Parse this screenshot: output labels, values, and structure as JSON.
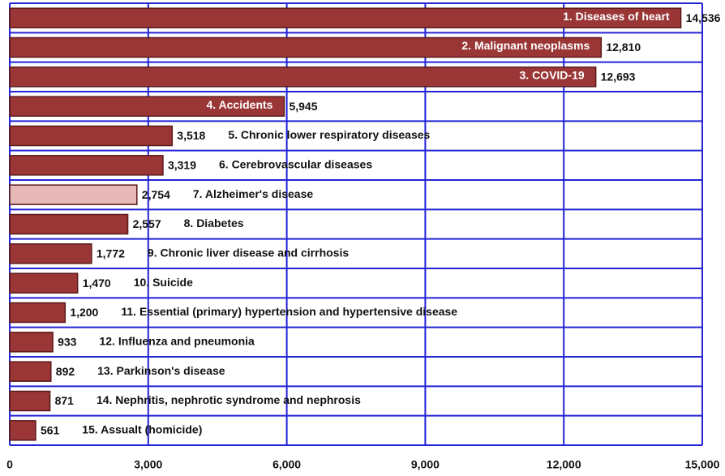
{
  "chart_data": {
    "type": "bar",
    "orientation": "horizontal",
    "categories": [
      "1.  Diseases of heart",
      "2.  Malignant neoplasms",
      "3.  COVID-19",
      "4.  Accidents",
      "5. Chronic lower respiratory diseases",
      "6. Cerebrovascular diseases",
      "7. Alzheimer's disease",
      "8. Diabetes",
      "9. Chronic liver disease and cirrhosis",
      "10.  Suicide",
      "11. Essential (primary) hypertension and hypertensive disease",
      "12. Influenza and pneumonia",
      "13. Parkinson's disease",
      "14. Nephritis, nephrotic syndrome and nephrosis",
      "15. Assualt (homicide)"
    ],
    "values": [
      14536,
      12810,
      12693,
      5945,
      3518,
      3319,
      2754,
      2557,
      1772,
      1470,
      1200,
      933,
      892,
      871,
      561
    ],
    "value_labels": [
      "14,536",
      "12,810",
      "12,693",
      "5,945",
      "3,518",
      "3,319",
      "2,754",
      "2,557",
      "1,772",
      "1,470",
      "1,200",
      "933",
      "892",
      "871",
      "561"
    ],
    "colors": [
      "#9a3636",
      "#9a3636",
      "#9a3636",
      "#9a3636",
      "#9a3636",
      "#9a3636",
      "#e6b9b8",
      "#9a3636",
      "#9a3636",
      "#9a3636",
      "#9a3636",
      "#9a3636",
      "#9a3636",
      "#9a3636",
      "#9a3636"
    ],
    "label_position": [
      "inside",
      "inside",
      "inside",
      "inside",
      "outside",
      "outside",
      "outside",
      "outside",
      "outside",
      "outside",
      "outside",
      "outside",
      "outside",
      "outside",
      "outside"
    ],
    "xlim": [
      0,
      15000
    ],
    "xticks": [
      0,
      {
        "value": 3000,
        "label": "3,000"
      },
      {
        "value": 6000,
        "label": "6,000"
      },
      {
        "value": 9000,
        "label": "9,000"
      },
      {
        "value": 12000,
        "label": "12,000"
      },
      {
        "value": 15000,
        "label": "15,000"
      }
    ],
    "grid": true
  }
}
